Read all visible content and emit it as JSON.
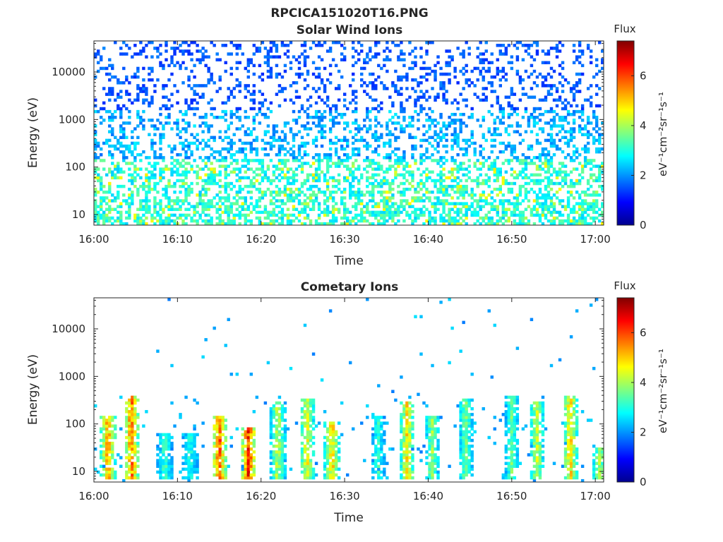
{
  "figure": {
    "title": "RPCICA151020T16.PNG"
  },
  "chart_data": [
    {
      "type": "heatmap",
      "title": "Solar Wind Ions",
      "xlabel": "Time",
      "ylabel": "Energy (eV)",
      "x_ticks": [
        "16:00",
        "16:10",
        "16:20",
        "16:30",
        "16:40",
        "16:50",
        "17:00"
      ],
      "x_range_minutes": [
        0,
        61
      ],
      "y_scale": "log",
      "y_ticks": [
        10,
        100,
        1000,
        10000
      ],
      "y_tick_labels": [
        "10",
        "100",
        "1000",
        "10000"
      ],
      "y_range": [
        6,
        45000
      ],
      "colorbar": {
        "title": "Flux",
        "label": "eV⁻¹cm⁻²sr⁻¹s⁻¹",
        "range": [
          0,
          7.4
        ],
        "ticks": [
          "0",
          "2",
          "4",
          "6"
        ],
        "colormap": "jet"
      },
      "background": "#ffffff",
      "grid": false
    },
    {
      "type": "heatmap",
      "title": "Cometary Ions",
      "xlabel": "Time",
      "ylabel": "Energy (eV)",
      "x_ticks": [
        "16:00",
        "16:10",
        "16:20",
        "16:30",
        "16:40",
        "16:50",
        "17:00"
      ],
      "x_range_minutes": [
        0,
        61
      ],
      "y_scale": "log",
      "y_ticks": [
        10,
        100,
        1000,
        10000
      ],
      "y_tick_labels": [
        "10",
        "100",
        "1000",
        "10000"
      ],
      "y_range": [
        6,
        45000
      ],
      "colorbar": {
        "title": "Flux",
        "label": "eV⁻¹cm⁻²sr⁻¹s⁻¹",
        "range": [
          0,
          7.4
        ],
        "ticks": [
          "0",
          "2",
          "4",
          "6"
        ],
        "colormap": "jet"
      },
      "background": "#ffffff",
      "grid": false,
      "bursts": [
        {
          "t": 1.7,
          "peak": 6.0,
          "top": 150
        },
        {
          "t": 4.5,
          "peak": 6.4,
          "top": 400
        },
        {
          "t": 8.5,
          "peak": 3.8,
          "top": 60
        },
        {
          "t": 11.5,
          "peak": 3.5,
          "top": 60
        },
        {
          "t": 15.0,
          "peak": 6.6,
          "top": 150
        },
        {
          "t": 18.5,
          "peak": 7.0,
          "top": 80
        },
        {
          "t": 22.0,
          "peak": 4.8,
          "top": 280
        },
        {
          "t": 25.5,
          "peak": 5.2,
          "top": 350
        },
        {
          "t": 28.5,
          "peak": 5.6,
          "top": 120
        },
        {
          "t": 34.0,
          "peak": 3.6,
          "top": 150
        },
        {
          "t": 37.5,
          "peak": 5.4,
          "top": 300
        },
        {
          "t": 40.5,
          "peak": 4.4,
          "top": 150
        },
        {
          "t": 44.5,
          "peak": 4.2,
          "top": 350
        },
        {
          "t": 50.0,
          "peak": 4.0,
          "top": 400
        },
        {
          "t": 53.0,
          "peak": 4.8,
          "top": 300
        },
        {
          "t": 57.0,
          "peak": 5.6,
          "top": 400
        },
        {
          "t": 60.5,
          "peak": 4.6,
          "top": 30
        }
      ]
    }
  ]
}
